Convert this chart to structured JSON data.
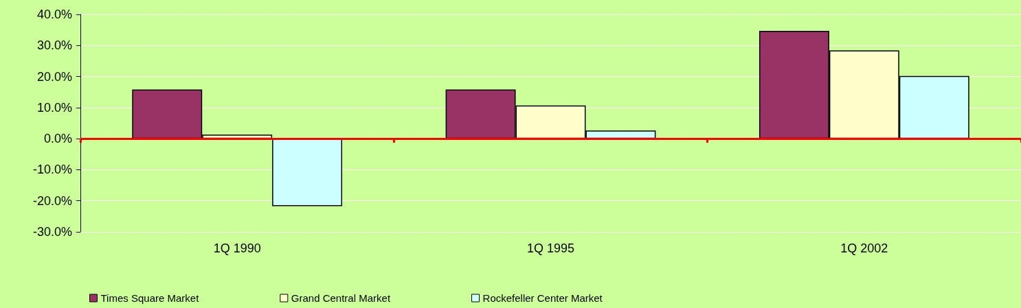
{
  "chart_data": {
    "type": "bar",
    "categories": [
      "1Q 1990",
      "1Q 1995",
      "1Q 2002"
    ],
    "series": [
      {
        "name": "Times Square Market",
        "color": "#993366",
        "values": [
          15.8,
          15.8,
          34.7
        ]
      },
      {
        "name": "Grand Central Market",
        "color": "#ffffcc",
        "values": [
          1.3,
          10.7,
          28.4
        ]
      },
      {
        "name": "Rockefeller Center Market",
        "color": "#ccffff",
        "values": [
          -21.7,
          2.6,
          20.2
        ]
      }
    ],
    "ylim": [
      -30,
      40
    ],
    "yticks": [
      {
        "value": -30,
        "label": "-30.0%"
      },
      {
        "value": -20,
        "label": "-20.0%"
      },
      {
        "value": -10,
        "label": "-10.0%"
      },
      {
        "value": 0,
        "label": "0.0%"
      },
      {
        "value": 10,
        "label": "10.0%"
      },
      {
        "value": 20,
        "label": "20.0%"
      },
      {
        "value": 30,
        "label": "30.0%"
      },
      {
        "value": 40,
        "label": "40.0%"
      }
    ],
    "ref_lines": [
      {
        "axis": "y",
        "value": 0,
        "color": "#ff0000"
      }
    ],
    "grid": "y",
    "legend": "bottom left"
  }
}
